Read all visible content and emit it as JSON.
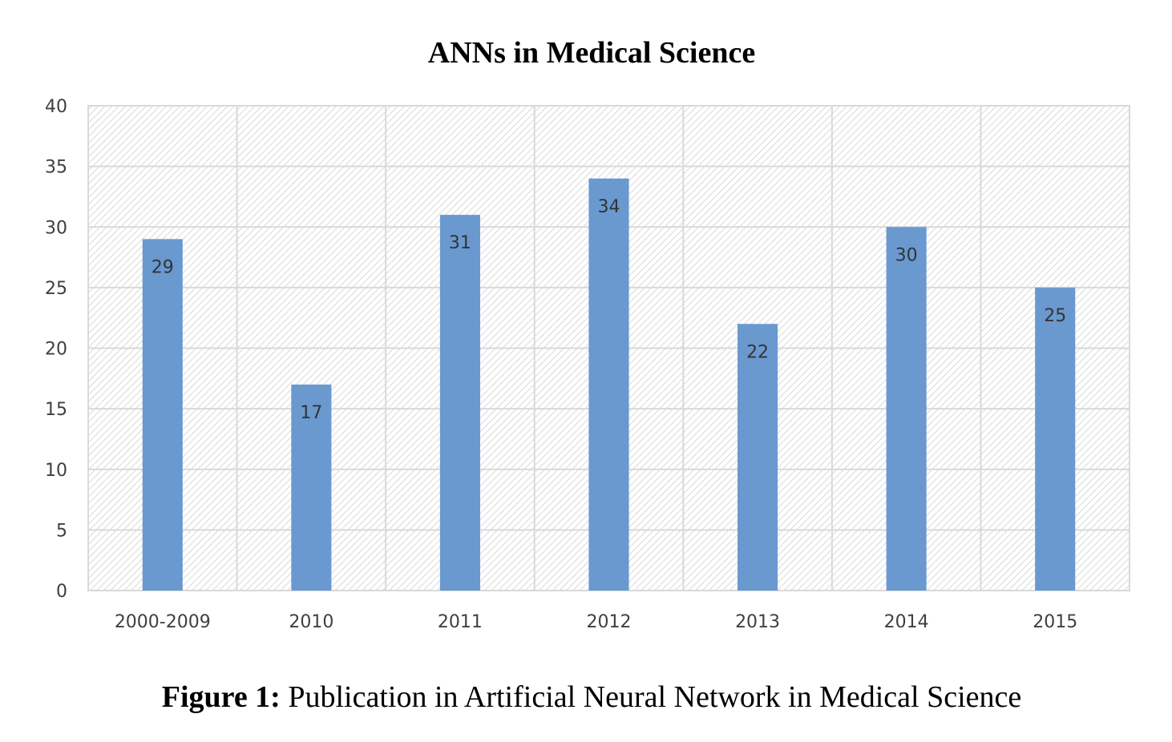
{
  "caption": {
    "label": "Figure 1:",
    "text": " Publication in Artificial Neural Network in Medical Science"
  },
  "chart_data": {
    "type": "bar",
    "title": "ANNs in Medical Science",
    "xlabel": "",
    "ylabel": "",
    "categories": [
      "2000-2009",
      "2010",
      "2011",
      "2012",
      "2013",
      "2014",
      "2015"
    ],
    "values": [
      29,
      17,
      31,
      34,
      22,
      30,
      25
    ],
    "ylim": [
      0,
      40
    ],
    "yticks": [
      0,
      5,
      10,
      15,
      20,
      25,
      30,
      35,
      40
    ],
    "grid": true,
    "legend": "none",
    "bar_color": "#6a99d0",
    "data_labels": true
  }
}
